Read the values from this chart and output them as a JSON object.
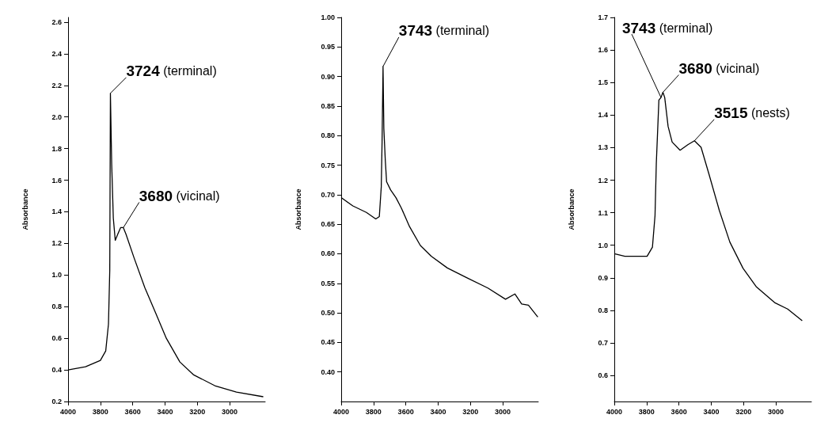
{
  "chart_data": [
    {
      "type": "line",
      "ylabel": "Absorbance",
      "xlim": [
        4000,
        2780
      ],
      "xticks": [
        4000,
        3800,
        3600,
        3400,
        3200,
        3000
      ],
      "ylim": [
        0.2,
        2.63
      ],
      "yticks": [
        0.2,
        0.4,
        0.6,
        0.8,
        {
          "value": 1,
          "label": "1.0"
        },
        1.2,
        1.4,
        1.6,
        1.8,
        {
          "value": 2,
          "label": "2.0"
        },
        2.2,
        2.4,
        2.6
      ],
      "grid": false,
      "marker": "none",
      "series": [
        {
          "color": "#000000",
          "x": [
            4000,
            3892,
            3800,
            3767,
            3750,
            3742,
            3738,
            3730,
            3720,
            3708,
            3692,
            3675,
            3658,
            3642,
            3592,
            3525,
            3458,
            3392,
            3308,
            3225,
            3092,
            2958,
            2792
          ],
          "values": [
            0.4,
            0.42,
            0.46,
            0.52,
            0.69,
            1.03,
            2.15,
            1.7,
            1.36,
            1.22,
            1.26,
            1.3,
            1.3,
            1.26,
            1.11,
            0.92,
            0.76,
            0.6,
            0.45,
            0.37,
            0.3,
            0.26,
            0.23
          ]
        }
      ],
      "annotations": [
        {
          "text": "3724 (terminal)",
          "x": 3738,
          "y": 2.15
        },
        {
          "text": "3680 (vicinal)",
          "x": 3658,
          "y": 1.3
        }
      ]
    },
    {
      "type": "line",
      "ylabel": "Absorbance",
      "xlim": [
        4000,
        2780
      ],
      "xticks": [
        4000,
        3800,
        3600,
        3400,
        3200,
        3000
      ],
      "ylim": [
        0.35,
        1.0
      ],
      "yticks": [
        {
          "value": 0.4,
          "label": "0.40"
        },
        0.45,
        {
          "value": 0.5,
          "label": "0.50"
        },
        0.55,
        {
          "value": 0.6,
          "label": "0.60"
        },
        0.65,
        {
          "value": 0.7,
          "label": "0.70"
        },
        0.75,
        {
          "value": 0.8,
          "label": "0.80"
        },
        0.85,
        {
          "value": 0.9,
          "label": "0.90"
        },
        0.95,
        {
          "value": 1,
          "label": "1.00"
        }
      ],
      "grid": false,
      "marker": "none",
      "series": [
        {
          "color": "#000000",
          "x": [
            4000,
            3928,
            3844,
            3786,
            3764,
            3752,
            3747,
            3741,
            3736,
            3727,
            3719,
            3694,
            3661,
            3627,
            3577,
            3510,
            3443,
            3343,
            3226,
            3092,
            2983,
            2925,
            2883,
            2841,
            2783
          ],
          "values": [
            0.695,
            0.681,
            0.67,
            0.659,
            0.663,
            0.713,
            0.789,
            0.917,
            0.812,
            0.758,
            0.722,
            0.708,
            0.695,
            0.677,
            0.646,
            0.614,
            0.596,
            0.576,
            0.56,
            0.542,
            0.523,
            0.532,
            0.515,
            0.513,
            0.493
          ]
        }
      ],
      "annotations": [
        {
          "text": "3743 (terminal)",
          "x": 3741,
          "y": 0.917
        }
      ]
    },
    {
      "type": "line",
      "ylabel": "Absorbance",
      "xlim": [
        4000,
        2780
      ],
      "xticks": [
        4000,
        3800,
        3600,
        3400,
        3200,
        3000
      ],
      "ylim": [
        0.52,
        1.7
      ],
      "yticks": [
        0.6,
        0.7,
        0.8,
        0.9,
        {
          "value": 1,
          "label": "1.0"
        },
        1.1,
        1.2,
        1.3,
        1.4,
        1.5,
        1.6,
        1.7
      ],
      "grid": false,
      "marker": "none",
      "series": [
        {
          "color": "#000000",
          "x": [
            4000,
            3935,
            3797,
            3764,
            3748,
            3740,
            3724,
            3711,
            3699,
            3688,
            3667,
            3642,
            3593,
            3545,
            3504,
            3463,
            3415,
            3350,
            3285,
            3203,
            3122,
            3008,
            2927,
            2837
          ],
          "values": [
            0.974,
            0.966,
            0.966,
            0.994,
            1.091,
            1.252,
            1.446,
            1.454,
            1.47,
            1.454,
            1.365,
            1.317,
            1.292,
            1.309,
            1.321,
            1.301,
            1.22,
            1.107,
            1.01,
            0.929,
            0.873,
            0.824,
            0.804,
            0.768
          ]
        }
      ],
      "annotations": [
        {
          "text": "3743 (terminal)",
          "x": 3711,
          "y": 1.454
        },
        {
          "text": "3680 (vicinal)",
          "x": 3699,
          "y": 1.47
        },
        {
          "text": "3515 (nests)",
          "x": 3504,
          "y": 1.321
        }
      ]
    }
  ]
}
